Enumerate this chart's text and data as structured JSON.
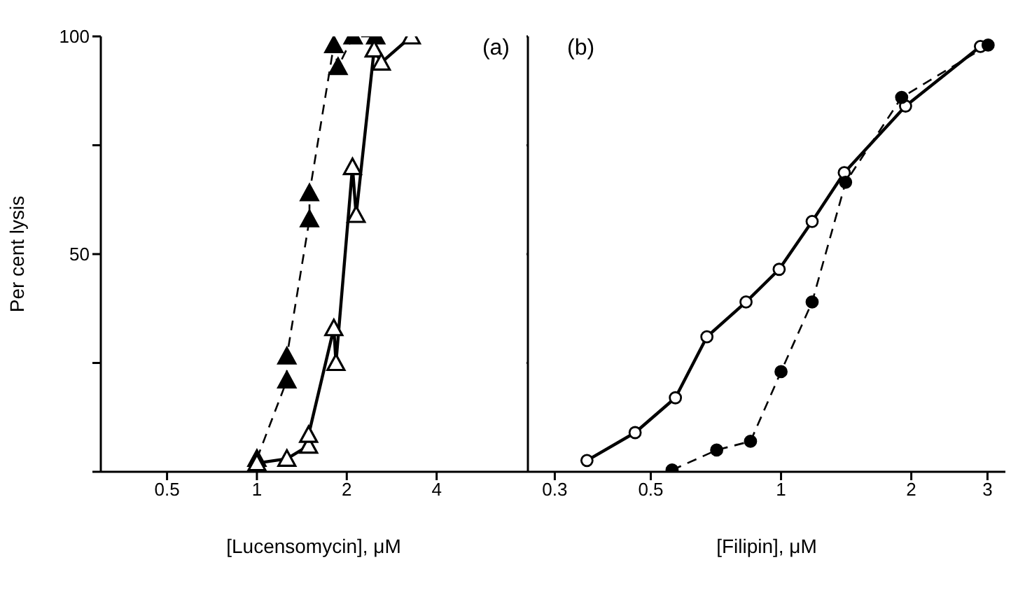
{
  "chart_data": [
    {
      "type": "line",
      "title": "(a)",
      "xlabel": "[Lucensomycin],  μM",
      "ylabel": "Per cent lysis",
      "log": "x",
      "xlim": [
        0.3,
        8
      ],
      "xticks": [
        0.5,
        1,
        2,
        4
      ],
      "ylim": [
        0,
        100
      ],
      "yticks": [
        {
          "value": 0,
          "label": null
        },
        {
          "value": 25,
          "label": null
        },
        50,
        {
          "value": 75,
          "label": null
        },
        100
      ],
      "series": [
        {
          "color": "#000000",
          "marker": "triangle",
          "line_style": "dashed",
          "x": [
            1.0,
            1.26,
            1.26,
            1.5,
            1.5,
            1.81,
            1.87,
            2.1,
            2.5
          ],
          "values": [
            3,
            21,
            26.5,
            58,
            64,
            98,
            93,
            100,
            100
          ]
        },
        {
          "color": "#000000",
          "marker": "triangle",
          "line_style": "solid",
          "x": [
            1.0,
            1.26,
            1.49,
            1.49,
            1.81,
            1.84,
            2.09,
            2.15,
            2.47,
            2.61,
            3.29
          ],
          "values": [
            2,
            3,
            6,
            8.5,
            33,
            25,
            70,
            59,
            97,
            94,
            100
          ]
        }
      ]
    },
    {
      "type": "line",
      "title": "(b)",
      "xlabel": "[Filipin],  μM",
      "log": "x",
      "xlim": [
        0.26,
        3.3
      ],
      "xticks": [
        0.3,
        0.5,
        1,
        2,
        3
      ],
      "ylim": [
        0,
        100
      ],
      "yticks": [
        {
          "value": 0,
          "label": null
        },
        {
          "value": 25,
          "label": null
        },
        {
          "value": 50,
          "label": null
        },
        {
          "value": 75,
          "label": null
        },
        {
          "value": 100,
          "label": null
        }
      ],
      "tick_labels": "x",
      "series": [
        {
          "color": "#000000",
          "marker": "circle",
          "line_style": "solid",
          "x": [
            0.356,
            0.46,
            0.57,
            0.674,
            0.83,
            0.99,
            1.18,
            1.4,
            1.94,
            2.89
          ],
          "values": [
            2.6,
            9,
            17,
            31,
            39,
            46.5,
            57.5,
            68.7,
            84,
            97.7
          ]
        },
        {
          "color": "#000000",
          "marker": "circle",
          "line_style": "dashed",
          "x": [
            0.56,
            0.71,
            0.85,
            1.0,
            1.18,
            1.41,
            1.9,
            3.01
          ],
          "values": [
            0.4,
            5,
            7,
            23,
            39,
            66.5,
            86,
            98
          ]
        }
      ]
    }
  ]
}
